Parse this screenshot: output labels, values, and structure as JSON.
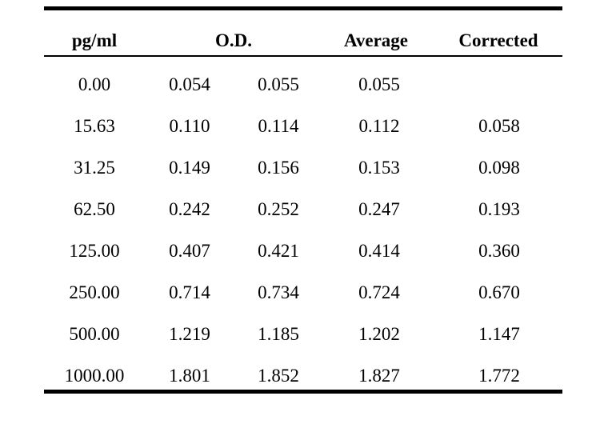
{
  "table": {
    "headers": {
      "pgml": "pg/ml",
      "od": "O.D.",
      "average": "Average",
      "corrected": "Corrected"
    },
    "rows": [
      {
        "pgml": "0.00",
        "od1": "0.054",
        "od2": "0.055",
        "average": "0.055",
        "corrected": ""
      },
      {
        "pgml": "15.63",
        "od1": "0.110",
        "od2": "0.114",
        "average": "0.112",
        "corrected": "0.058"
      },
      {
        "pgml": "31.25",
        "od1": "0.149",
        "od2": "0.156",
        "average": "0.153",
        "corrected": "0.098"
      },
      {
        "pgml": "62.50",
        "od1": "0.242",
        "od2": "0.252",
        "average": "0.247",
        "corrected": "0.193"
      },
      {
        "pgml": "125.00",
        "od1": "0.407",
        "od2": "0.421",
        "average": "0.414",
        "corrected": "0.360"
      },
      {
        "pgml": "250.00",
        "od1": "0.714",
        "od2": "0.734",
        "average": "0.724",
        "corrected": "0.670"
      },
      {
        "pgml": "500.00",
        "od1": "1.219",
        "od2": "1.185",
        "average": "1.202",
        "corrected": "1.147"
      },
      {
        "pgml": "1000.00",
        "od1": "1.801",
        "od2": "1.852",
        "average": "1.827",
        "corrected": "1.772"
      }
    ]
  }
}
